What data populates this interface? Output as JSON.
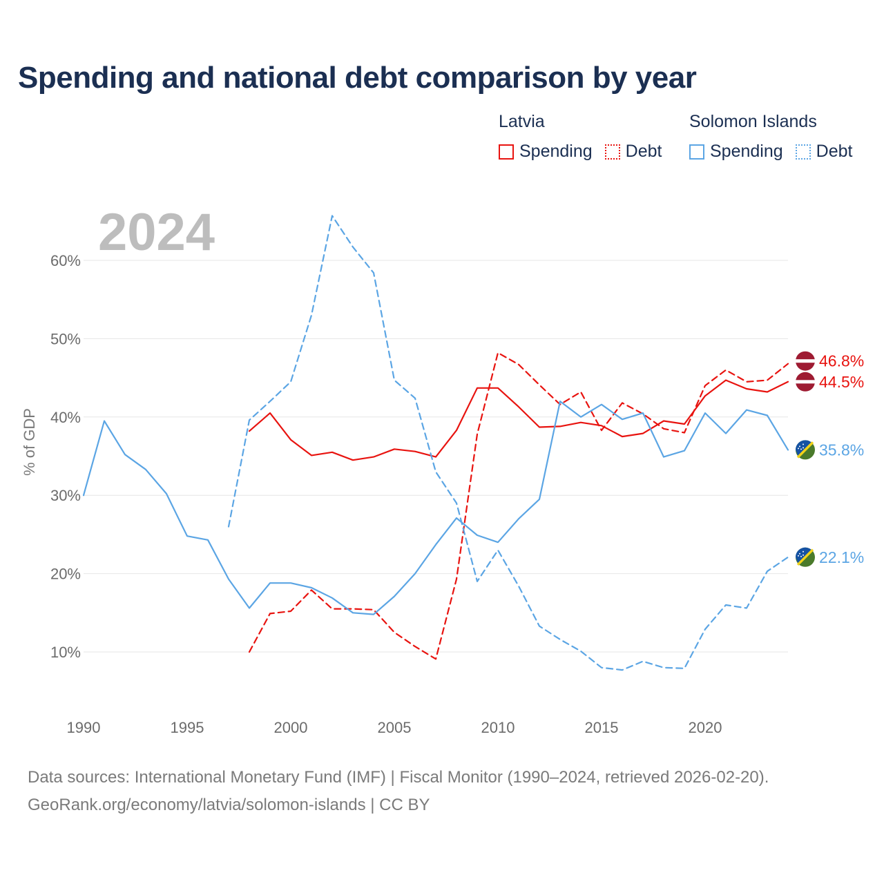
{
  "title": "Spending and national debt comparison by year",
  "legend": {
    "latvia": {
      "name": "Latvia",
      "spending_label": "Spending",
      "debt_label": "Debt",
      "color": "#e8130f"
    },
    "solomon": {
      "name": "Solomon Islands",
      "spending_label": "Spending",
      "debt_label": "Debt",
      "color": "#5ba5e4"
    }
  },
  "footer": {
    "line1": "Data sources: International Monetary Fund (IMF) | Fiscal Monitor (1990–2024, retrieved 2026-02-20).",
    "line2": "GeoRank.org/economy/latvia/solomon-islands | CC BY"
  },
  "chart_data": {
    "type": "line",
    "title": "Spending and national debt comparison by year",
    "watermark_year": "2024",
    "ylabel": "% of GDP",
    "xlabel": "",
    "xlim": [
      1990,
      2024
    ],
    "ylim": [
      3,
      67
    ],
    "x_ticks": [
      1990,
      1995,
      2000,
      2005,
      2010,
      2015,
      2020
    ],
    "y_ticks": [
      10,
      20,
      30,
      40,
      50,
      60
    ],
    "y_tick_labels": [
      "10%",
      "20%",
      "30%",
      "40%",
      "50%",
      "60%"
    ],
    "grid": true,
    "series": [
      {
        "name": "Latvia Spending",
        "country": "Latvia",
        "metric": "Spending",
        "style": "solid",
        "color": "#e8130f",
        "x": [
          1998,
          1999,
          2000,
          2001,
          2002,
          2003,
          2004,
          2005,
          2006,
          2007,
          2008,
          2009,
          2010,
          2011,
          2012,
          2013,
          2014,
          2015,
          2016,
          2017,
          2018,
          2019,
          2020,
          2021,
          2022,
          2023,
          2024
        ],
        "values": [
          38.2,
          40.5,
          37.1,
          35.1,
          35.5,
          34.5,
          34.9,
          35.9,
          35.6,
          34.9,
          38.3,
          43.7,
          43.7,
          41.3,
          38.7,
          38.8,
          39.3,
          38.9,
          37.5,
          37.9,
          39.5,
          39.1,
          42.7,
          44.7,
          43.6,
          43.2,
          44.5
        ],
        "end_label": "44.5%"
      },
      {
        "name": "Latvia Debt",
        "country": "Latvia",
        "metric": "Debt",
        "style": "dashed",
        "color": "#e8130f",
        "x": [
          1998,
          1999,
          2000,
          2001,
          2002,
          2003,
          2004,
          2005,
          2006,
          2007,
          2008,
          2009,
          2010,
          2011,
          2012,
          2013,
          2014,
          2015,
          2016,
          2017,
          2018,
          2019,
          2020,
          2021,
          2022,
          2023,
          2024
        ],
        "values": [
          10.0,
          14.9,
          15.2,
          17.9,
          15.5,
          15.5,
          15.4,
          12.5,
          10.7,
          9.1,
          19.3,
          37.8,
          48.2,
          46.7,
          44.1,
          41.6,
          43.2,
          38.3,
          41.8,
          40.4,
          38.5,
          38.0,
          44.0,
          46.0,
          44.5,
          44.7,
          46.8
        ],
        "end_label": "46.8%"
      },
      {
        "name": "Solomon Islands Spending",
        "country": "Solomon Islands",
        "metric": "Spending",
        "style": "solid",
        "color": "#5ba5e4",
        "x": [
          1990,
          1991,
          1992,
          1993,
          1994,
          1995,
          1996,
          1997,
          1998,
          1999,
          2000,
          2001,
          2002,
          2003,
          2004,
          2005,
          2006,
          2007,
          2008,
          2009,
          2010,
          2011,
          2012,
          2013,
          2014,
          2015,
          2016,
          2017,
          2018,
          2019,
          2020,
          2021,
          2022,
          2023,
          2024
        ],
        "values": [
          30.0,
          39.5,
          35.2,
          33.3,
          30.2,
          24.8,
          24.3,
          19.3,
          15.6,
          18.8,
          18.8,
          18.2,
          16.9,
          15.0,
          14.8,
          17.1,
          20.0,
          23.7,
          27.1,
          24.9,
          24.0,
          27.0,
          29.5,
          42.0,
          40.0,
          41.6,
          39.7,
          40.5,
          34.9,
          35.7,
          40.5,
          37.9,
          40.9,
          40.2,
          35.8
        ],
        "end_label": "35.8%"
      },
      {
        "name": "Solomon Islands Debt",
        "country": "Solomon Islands",
        "metric": "Debt",
        "style": "dashed",
        "color": "#5ba5e4",
        "x": [
          1997,
          1998,
          1999,
          2000,
          2001,
          2002,
          2003,
          2004,
          2005,
          2006,
          2007,
          2008,
          2009,
          2010,
          2011,
          2012,
          2013,
          2014,
          2015,
          2016,
          2017,
          2018,
          2019,
          2020,
          2021,
          2022,
          2023,
          2024
        ],
        "values": [
          26.0,
          39.6,
          42.0,
          44.5,
          53.0,
          65.7,
          61.7,
          58.4,
          44.7,
          42.4,
          33.0,
          29.0,
          19.0,
          23.0,
          18.4,
          13.3,
          11.6,
          10.1,
          8.0,
          7.7,
          8.8,
          8.0,
          7.9,
          12.9,
          16.0,
          15.6,
          20.3,
          22.1
        ],
        "end_label": "22.1%"
      }
    ]
  }
}
